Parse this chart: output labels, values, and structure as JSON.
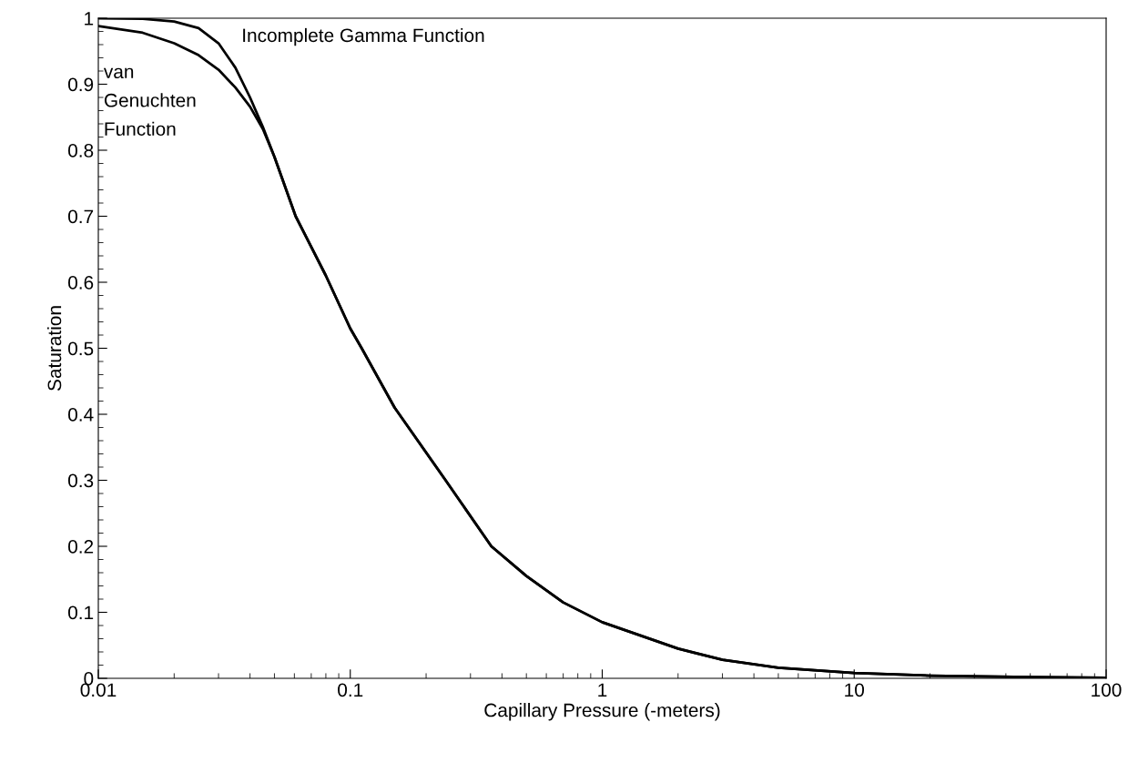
{
  "chart_data": {
    "type": "line",
    "xlabel": "Capillary Pressure (-meters)",
    "ylabel": "Saturation",
    "log": "x",
    "xlim": [
      0.01,
      100
    ],
    "xticks": [
      0.01,
      0.1,
      1,
      10,
      100
    ],
    "ylim": [
      0,
      1
    ],
    "yticks": [
      0,
      0.1,
      0.2,
      0.3,
      0.4,
      0.5,
      0.6,
      0.7,
      0.8,
      0.9,
      1
    ],
    "grid": false,
    "legend": false,
    "marker": "none",
    "line_style": "solid",
    "series": [
      {
        "name": "van Genuchten Function",
        "color": "#000000",
        "x": [
          0.01,
          0.015,
          0.02,
          0.025,
          0.03,
          0.035,
          0.04,
          0.045,
          0.05,
          0.0607,
          0.08,
          0.1,
          0.111,
          0.15,
          0.239,
          0.363,
          0.5,
          0.7,
          1,
          2,
          3,
          5,
          10,
          20,
          50,
          100
        ],
        "values": [
          0.988,
          0.978,
          0.962,
          0.944,
          0.922,
          0.895,
          0.866,
          0.832,
          0.79,
          0.7,
          0.61,
          0.53,
          0.5,
          0.41,
          0.3,
          0.2,
          0.155,
          0.115,
          0.085,
          0.045,
          0.028,
          0.016,
          0.008,
          0.004,
          0.002,
          0.001
        ]
      },
      {
        "name": "Incomplete Gamma Function",
        "color": "#000000",
        "x": [
          0.01,
          0.015,
          0.02,
          0.025,
          0.03,
          0.035,
          0.04,
          0.045,
          0.05,
          0.0607,
          0.08,
          0.1,
          0.111,
          0.15,
          0.239,
          0.363,
          0.5,
          0.7,
          1,
          2,
          3,
          5,
          10,
          20,
          50,
          100
        ],
        "values": [
          1.0,
          0.999,
          0.995,
          0.985,
          0.962,
          0.925,
          0.88,
          0.835,
          0.79,
          0.7,
          0.61,
          0.53,
          0.5,
          0.41,
          0.3,
          0.2,
          0.155,
          0.115,
          0.085,
          0.045,
          0.028,
          0.016,
          0.008,
          0.004,
          0.002,
          0.001
        ]
      }
    ]
  }
}
